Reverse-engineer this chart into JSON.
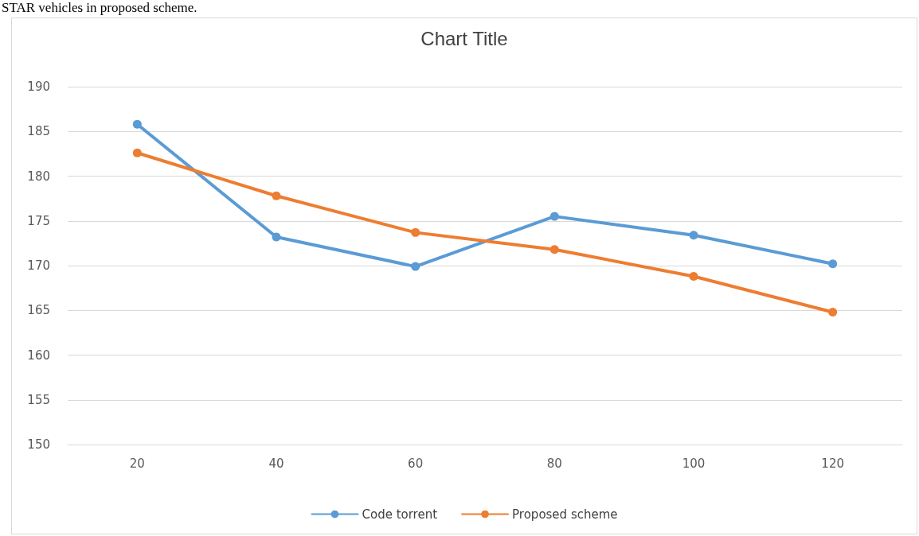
{
  "chart_data": {
    "type": "line",
    "title": "Chart Title",
    "annotations": [
      "STAR vehicles in proposed scheme."
    ],
    "categories": [
      "20",
      "40",
      "60",
      "80",
      "100",
      "120"
    ],
    "series": [
      {
        "name": "Code torrent",
        "color": "#5b9bd5",
        "values": [
          185.8,
          173.2,
          169.9,
          175.5,
          173.4,
          170.2
        ]
      },
      {
        "name": "Proposed scheme",
        "color": "#ed7d31",
        "values": [
          182.6,
          177.8,
          173.7,
          171.8,
          168.8,
          164.8
        ]
      }
    ],
    "ylim": [
      150,
      190
    ],
    "yticks": [
      150,
      155,
      160,
      165,
      170,
      175,
      180,
      185,
      190
    ],
    "grid": "y",
    "legend": "bottom",
    "marker": "circle",
    "line_style": "solid"
  }
}
